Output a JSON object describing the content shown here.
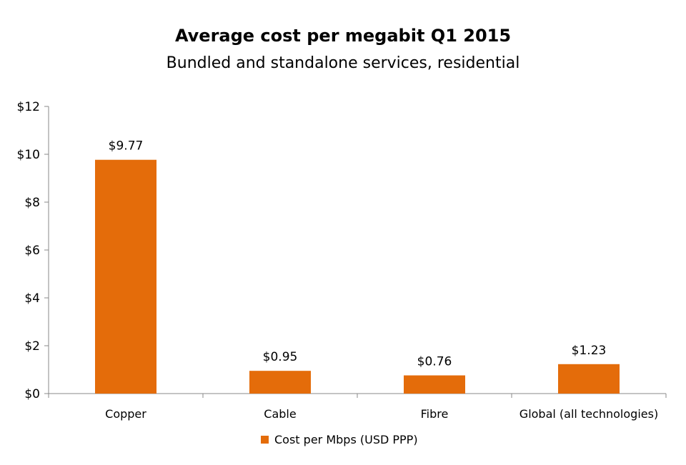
{
  "chart_data": {
    "type": "bar",
    "title": "Average cost per megabit Q1 2015",
    "subtitle": "Bundled and standalone services, residential",
    "categories": [
      "Copper",
      "Cable",
      "Fibre",
      "Global (all technologies)"
    ],
    "series": [
      {
        "name": "Cost per Mbps (USD PPP)",
        "values": [
          9.77,
          0.95,
          0.76,
          1.23
        ],
        "color": "#E46C0A"
      }
    ],
    "data_labels": [
      "$9.77",
      "$0.95",
      "$0.76",
      "$1.23"
    ],
    "yticks": [
      "$0",
      "$2",
      "$4",
      "$6",
      "$8",
      "$10",
      "$12"
    ],
    "ylim": [
      0,
      12
    ],
    "xlabel": "",
    "ylabel": "",
    "grid": false,
    "legend": "bottom"
  }
}
